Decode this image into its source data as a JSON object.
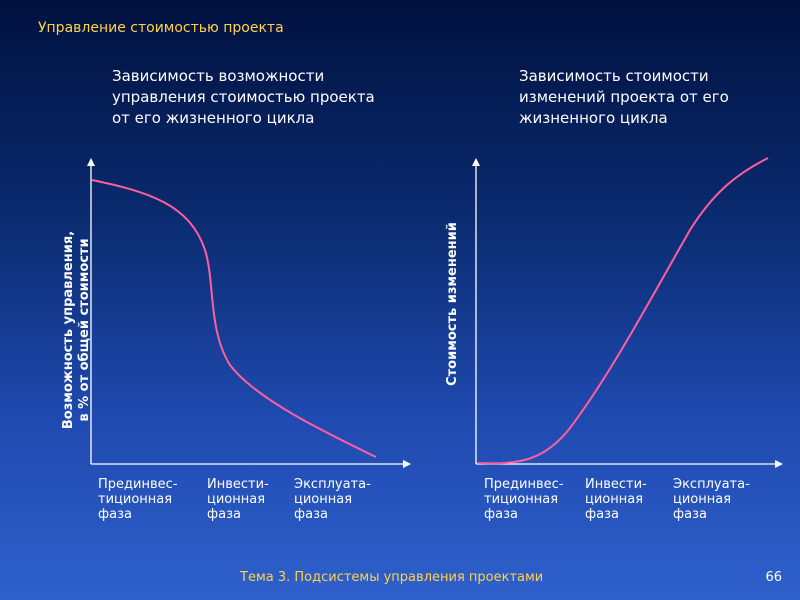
{
  "slide": {
    "title": "Управление стоимостью проекта",
    "footer": "Тема 3. Подсистемы управления проектами",
    "page_number": "66"
  },
  "charts": [
    {
      "title": "Зависимость возможности управления стоимостью проекта от его жизненного цикла",
      "title_lines": [
        "Зависимость возможности",
        "управления стоимостью проекта",
        "от его жизненного цикла"
      ],
      "ylabel_lines": [
        "Возможность управления,",
        "в % от общей стоимости"
      ],
      "phases": [
        [
          "Прединвес-",
          "тиционная",
          "фаза"
        ],
        [
          "Инвести-",
          "ционная",
          "фаза"
        ],
        [
          "Эксплуата-",
          "ционная",
          "фаза"
        ]
      ],
      "curve": "decreasing",
      "curve_color": "#ff5f9e"
    },
    {
      "title": "Зависимость стоимости изменений проекта от его жизненного цикла",
      "title_lines": [
        "Зависимость стоимости",
        "изменений проекта от его",
        "жизненного цикла"
      ],
      "ylabel_lines": [
        "Стоимость изменений"
      ],
      "phases": [
        [
          "Прединвес-",
          "тиционная",
          "фаза"
        ],
        [
          "Инвести-",
          "ционная",
          "фаза"
        ],
        [
          "Эксплуата-",
          "ционная",
          "фаза"
        ]
      ],
      "curve": "increasing",
      "curve_color": "#ff5f9e"
    }
  ]
}
